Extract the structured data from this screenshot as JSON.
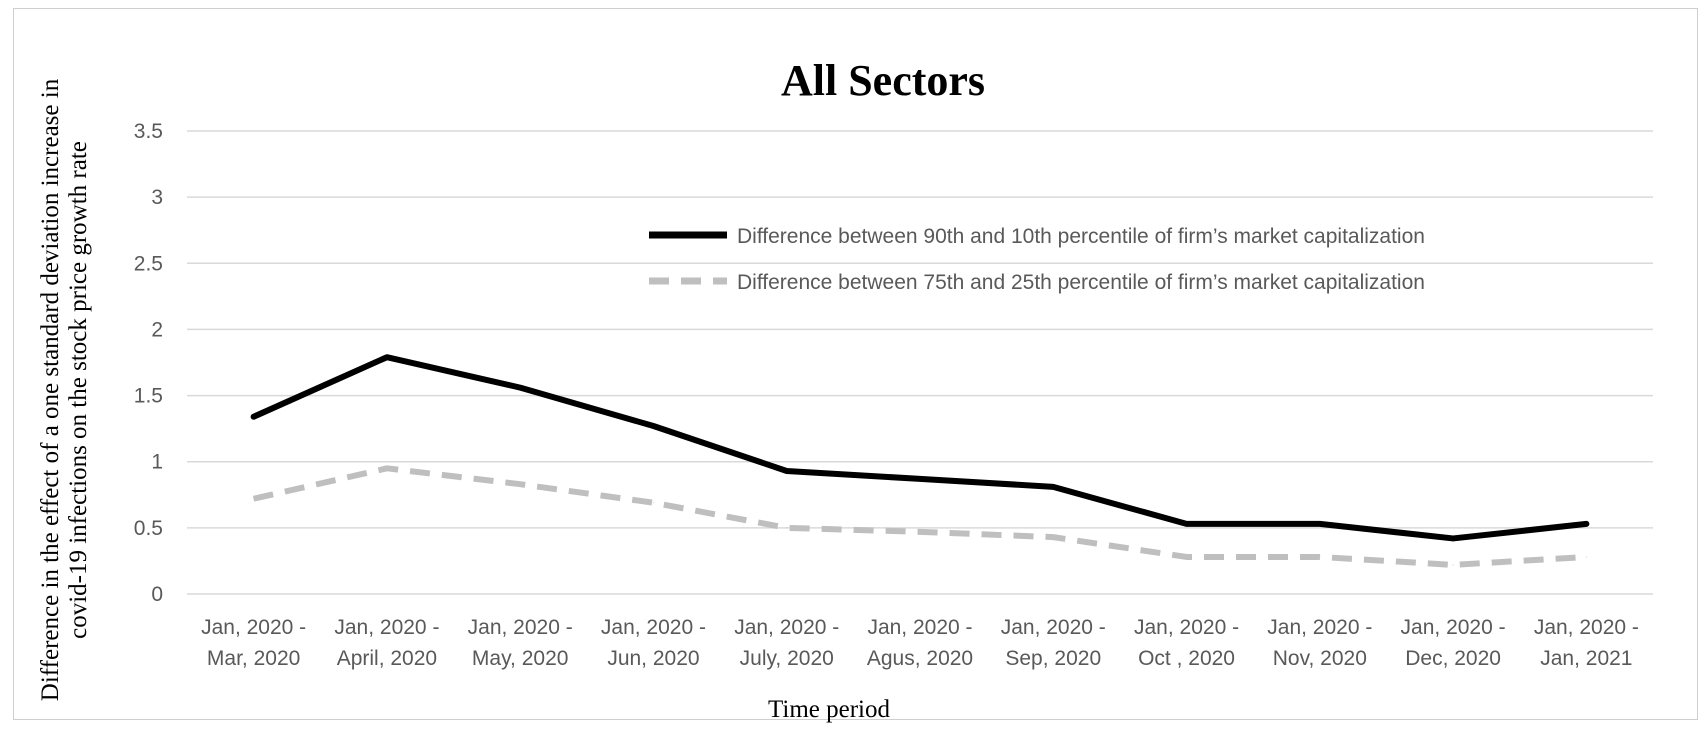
{
  "chart_data": {
    "type": "line",
    "title": "All Sectors",
    "xlabel": "Time period",
    "ylabel_lines": [
      "Difference  in the effect of a one standard deviation  increase in",
      "covid-19 infections  on the stock price growth rate"
    ],
    "ylim": [
      0,
      3.5
    ],
    "yticks": [
      "0",
      "0.5",
      "1",
      "1.5",
      "2",
      "2.5",
      "3",
      "3.5"
    ],
    "grid": true,
    "legend_position": "top-right",
    "categories": [
      [
        "Jan, 2020 -",
        "Mar, 2020"
      ],
      [
        "Jan, 2020 -",
        "April, 2020"
      ],
      [
        "Jan, 2020 -",
        "May, 2020"
      ],
      [
        "Jan, 2020 -",
        "Jun, 2020"
      ],
      [
        "Jan, 2020 -",
        "July, 2020"
      ],
      [
        "Jan, 2020 -",
        "Agus, 2020"
      ],
      [
        "Jan, 2020 -",
        "Sep, 2020"
      ],
      [
        "Jan, 2020 -",
        "Oct , 2020"
      ],
      [
        "Jan, 2020 -",
        "Nov, 2020"
      ],
      [
        "Jan, 2020 -",
        "Dec, 2020"
      ],
      [
        "Jan, 2020 -",
        "Jan, 2021"
      ]
    ],
    "series": [
      {
        "name": "Difference between 90th and 10th percentile of firm’s market capitalization",
        "color": "#000000",
        "style": "solid",
        "values": [
          1.34,
          1.79,
          1.56,
          1.27,
          0.93,
          0.87,
          0.81,
          0.53,
          0.53,
          0.42,
          0.53
        ]
      },
      {
        "name": "Difference between 75th and 25th percentile of firm’s market capitalization",
        "color": "#bfbfbf",
        "style": "dashed",
        "values": [
          0.72,
          0.95,
          0.83,
          0.69,
          0.5,
          0.47,
          0.43,
          0.28,
          0.28,
          0.22,
          0.28
        ]
      }
    ]
  }
}
